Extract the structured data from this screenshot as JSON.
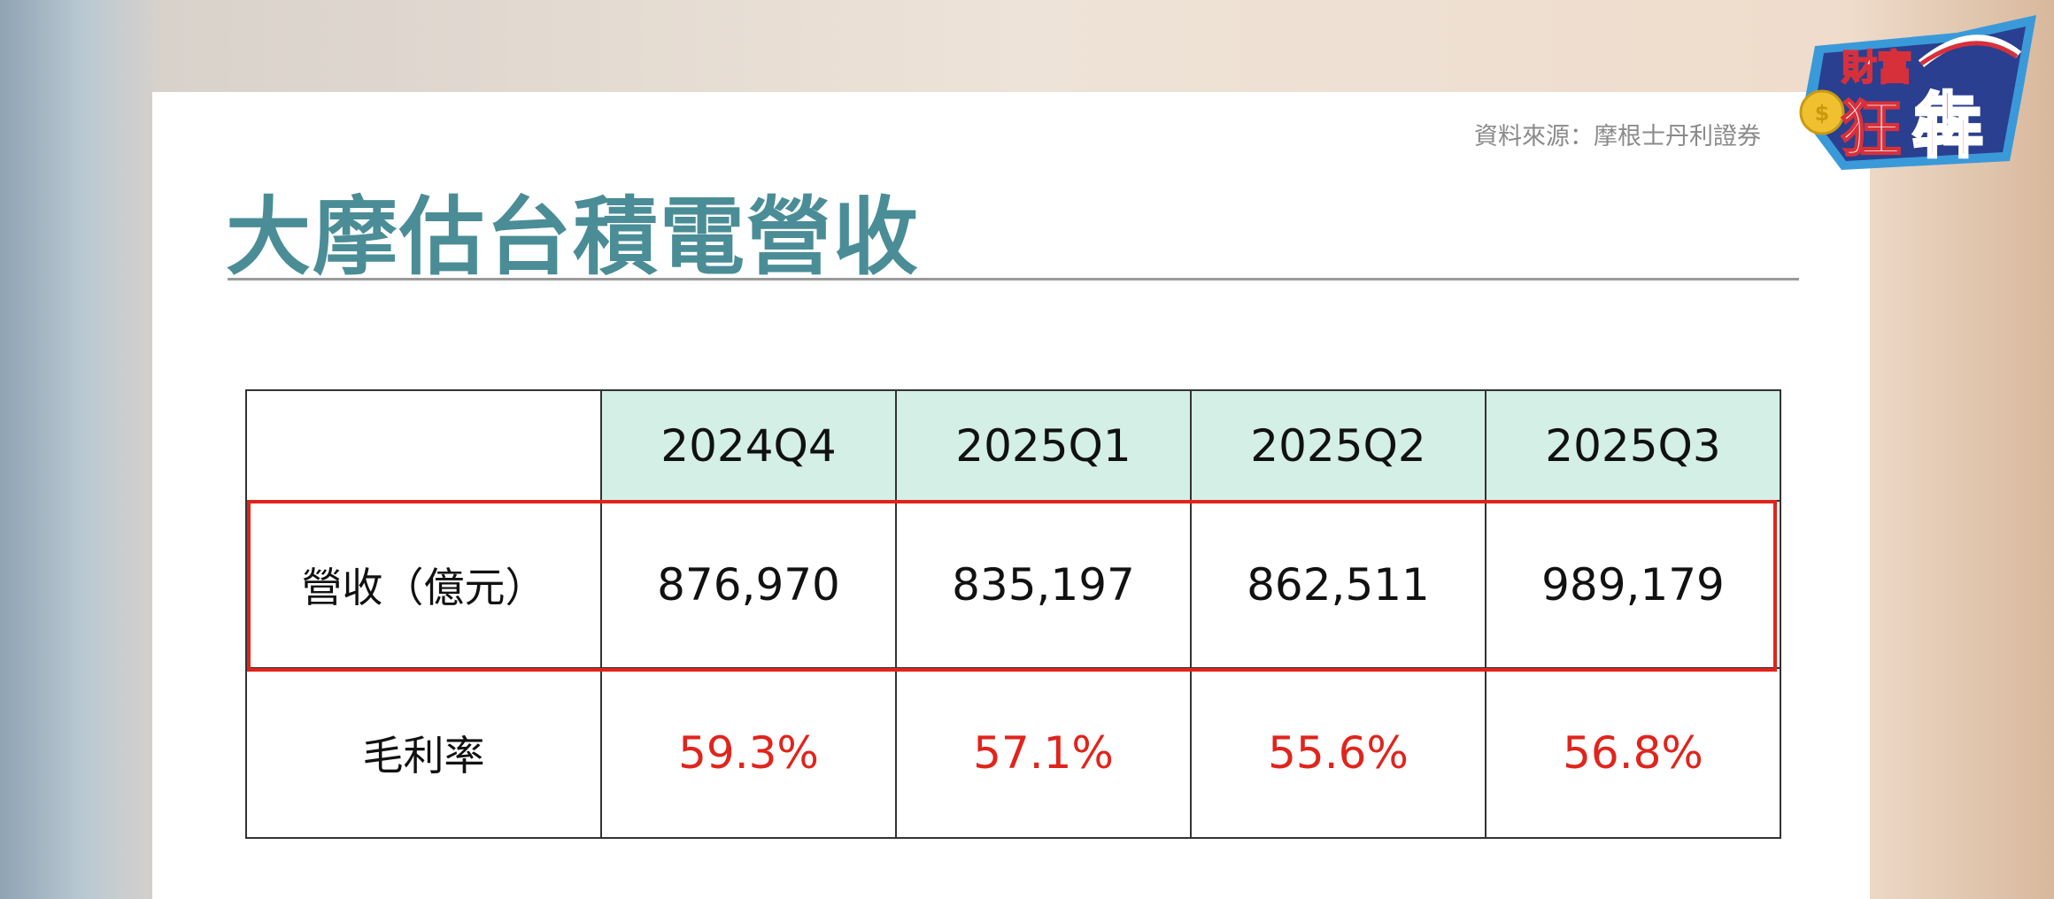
{
  "source": "資料來源：摩根士丹利證券",
  "title": "大摩估台積電營收",
  "logo": {
    "text": "財富狂犇",
    "colors": {
      "blue": "#2a3f8f",
      "red": "#d8303a",
      "outline": "#3a9ad9",
      "coin": "#f0c030"
    }
  },
  "table": {
    "headers": [
      "",
      "2024Q4",
      "2025Q1",
      "2025Q2",
      "2025Q3"
    ],
    "rows": [
      {
        "label": "營收（億元）",
        "values": [
          "876,970",
          "835,197",
          "862,511",
          "989,179"
        ],
        "highlighted": true
      },
      {
        "label": "毛利率",
        "values": [
          "59.3%",
          "57.1%",
          "55.6%",
          "56.8%"
        ]
      }
    ]
  },
  "colors": {
    "title": "#4a8d96",
    "header_bg": "#d3efe6",
    "highlight": "#e0241c"
  }
}
